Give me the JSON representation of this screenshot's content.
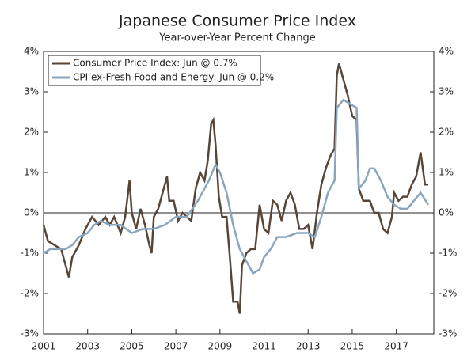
{
  "chart_data": {
    "type": "line",
    "title": "Japanese Consumer Price Index",
    "subtitle": "Year-over-Year Percent Change",
    "xlim": [
      2001,
      2018.7
    ],
    "xticks": [
      2001,
      2003,
      2005,
      2007,
      2009,
      2011,
      2013,
      2015,
      2017
    ],
    "ylim": [
      -3,
      4
    ],
    "yticks": [
      {
        "value": -3,
        "label": "-3%"
      },
      {
        "value": -2,
        "label": "-2%"
      },
      {
        "value": -1,
        "label": "-1%"
      },
      {
        "value": 0,
        "label": "0%"
      },
      {
        "value": 1,
        "label": "1%"
      },
      {
        "value": 2,
        "label": "2%"
      },
      {
        "value": 3,
        "label": "3%"
      },
      {
        "value": 4,
        "label": "4%"
      }
    ],
    "y2lim": [
      -3,
      4
    ],
    "y2ticks": [
      {
        "value": -3,
        "label": "-3%"
      },
      {
        "value": -2,
        "label": "-2%"
      },
      {
        "value": -1,
        "label": "-1%"
      },
      {
        "value": 0,
        "label": "0%"
      },
      {
        "value": 1,
        "label": "1%"
      },
      {
        "value": 2,
        "label": "2%"
      },
      {
        "value": 3,
        "label": "3%"
      },
      {
        "value": 4,
        "label": "4%"
      }
    ],
    "legend": "upper left",
    "series": [
      {
        "name": "Consumer Price Index: Jun @ 0.7%",
        "color": "#574638",
        "x": [
          2001.0,
          2001.2,
          2001.5,
          2001.8,
          2002.0,
          2002.15,
          2002.3,
          2002.6,
          2002.9,
          2003.2,
          2003.5,
          2003.8,
          2004.0,
          2004.2,
          2004.5,
          2004.7,
          2004.9,
          2005.0,
          2005.2,
          2005.4,
          2005.6,
          2005.8,
          2005.9,
          2006.0,
          2006.2,
          2006.4,
          2006.6,
          2006.7,
          2006.9,
          2007.1,
          2007.3,
          2007.5,
          2007.7,
          2007.9,
          2008.1,
          2008.3,
          2008.45,
          2008.6,
          2008.7,
          2008.8,
          2008.95,
          2009.1,
          2009.3,
          2009.45,
          2009.6,
          2009.8,
          2009.9,
          2010.0,
          2010.2,
          2010.4,
          2010.6,
          2010.8,
          2011.0,
          2011.2,
          2011.4,
          2011.6,
          2011.8,
          2012.0,
          2012.2,
          2012.4,
          2012.6,
          2012.8,
          2013.0,
          2013.2,
          2013.4,
          2013.6,
          2013.8,
          2014.0,
          2014.2,
          2014.3,
          2014.4,
          2014.6,
          2014.8,
          2015.0,
          2015.2,
          2015.3,
          2015.5,
          2015.8,
          2016.0,
          2016.2,
          2016.4,
          2016.6,
          2016.8,
          2016.9,
          2017.1,
          2017.3,
          2017.5,
          2017.7,
          2017.9,
          2018.1,
          2018.3,
          2018.45
        ],
        "values": [
          -0.3,
          -0.7,
          -0.8,
          -0.9,
          -1.3,
          -1.6,
          -1.1,
          -0.8,
          -0.4,
          -0.1,
          -0.3,
          -0.1,
          -0.3,
          -0.1,
          -0.5,
          -0.1,
          0.8,
          0.0,
          -0.4,
          0.1,
          -0.3,
          -0.8,
          -1.0,
          -0.1,
          0.1,
          0.5,
          0.9,
          0.3,
          0.3,
          -0.2,
          0.0,
          -0.1,
          -0.2,
          0.6,
          1.0,
          0.8,
          1.3,
          2.2,
          2.3,
          1.7,
          0.4,
          -0.1,
          -0.1,
          -1.1,
          -2.2,
          -2.2,
          -2.5,
          -1.3,
          -1.0,
          -0.9,
          -0.9,
          0.2,
          -0.4,
          -0.5,
          0.3,
          0.2,
          -0.2,
          0.3,
          0.5,
          0.2,
          -0.4,
          -0.4,
          -0.3,
          -0.9,
          0.0,
          0.7,
          1.1,
          1.4,
          1.6,
          3.4,
          3.7,
          3.3,
          2.9,
          2.4,
          2.3,
          0.6,
          0.3,
          0.3,
          0.0,
          0.0,
          -0.4,
          -0.5,
          -0.1,
          0.5,
          0.3,
          0.4,
          0.4,
          0.7,
          0.9,
          1.5,
          0.7,
          0.7
        ]
      },
      {
        "name": "CPI ex-Fresh Food and Energy: Jun @ 0.2%",
        "color": "#8aa6bf",
        "x": [
          2001.0,
          2001.3,
          2001.6,
          2002.0,
          2002.3,
          2002.6,
          2003.0,
          2003.3,
          2003.6,
          2004.0,
          2004.5,
          2005.0,
          2005.5,
          2006.0,
          2006.5,
          2007.0,
          2007.5,
          2008.0,
          2008.5,
          2008.8,
          2009.0,
          2009.3,
          2009.6,
          2009.9,
          2010.2,
          2010.5,
          2010.8,
          2011.0,
          2011.3,
          2011.6,
          2012.0,
          2012.5,
          2013.0,
          2013.3,
          2013.6,
          2013.9,
          2014.2,
          2014.3,
          2014.6,
          2014.9,
          2015.2,
          2015.3,
          2015.6,
          2015.8,
          2016.0,
          2016.3,
          2016.6,
          2016.9,
          2017.2,
          2017.5,
          2017.8,
          2018.1,
          2018.45
        ],
        "values": [
          -1.0,
          -0.9,
          -0.9,
          -0.9,
          -0.8,
          -0.6,
          -0.5,
          -0.3,
          -0.2,
          -0.3,
          -0.3,
          -0.5,
          -0.4,
          -0.4,
          -0.3,
          -0.1,
          -0.1,
          0.3,
          0.8,
          1.2,
          1.0,
          0.5,
          -0.3,
          -0.9,
          -1.2,
          -1.5,
          -1.4,
          -1.1,
          -0.9,
          -0.6,
          -0.6,
          -0.5,
          -0.5,
          -0.6,
          -0.1,
          0.5,
          0.8,
          2.6,
          2.8,
          2.7,
          2.6,
          0.6,
          0.8,
          1.1,
          1.1,
          0.8,
          0.4,
          0.2,
          0.1,
          0.1,
          0.3,
          0.5,
          0.2
        ]
      }
    ]
  }
}
